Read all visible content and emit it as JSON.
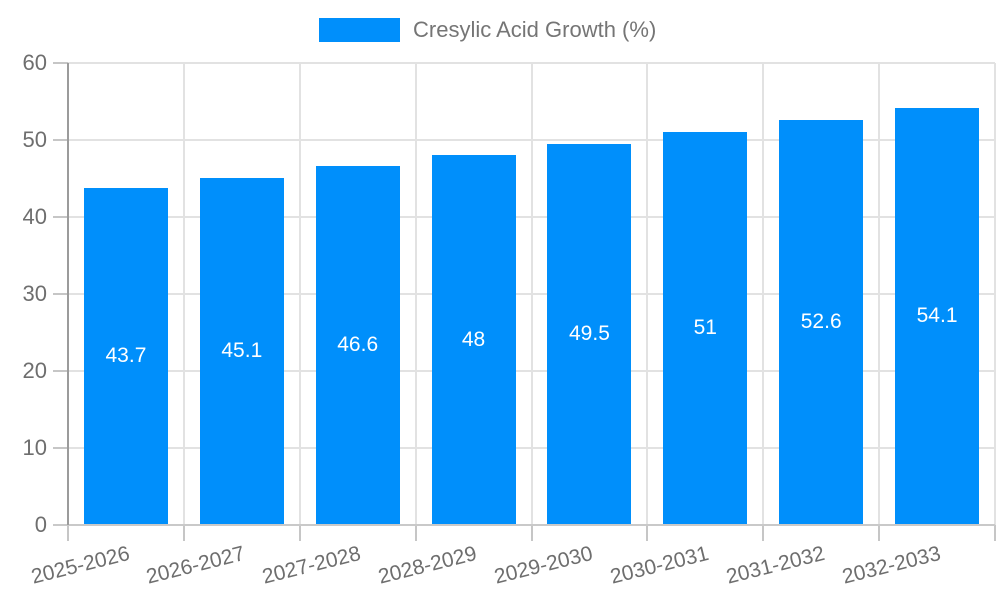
{
  "chart_data": {
    "type": "bar",
    "title": "",
    "legend": {
      "position": "top",
      "label": "Cresylic Acid Growth (%)"
    },
    "categories": [
      "2025-2026",
      "2026-2027",
      "2027-2028",
      "2028-2029",
      "2029-2030",
      "2030-2031",
      "2031-2032",
      "2032-2033"
    ],
    "series": [
      {
        "name": "Cresylic Acid Growth (%)",
        "values": [
          43.7,
          45.1,
          46.6,
          48,
          49.5,
          51,
          52.6,
          54.1
        ],
        "bar_labels": [
          "43.7",
          "45.1",
          "46.6",
          "48",
          "49.5",
          "51",
          "52.6",
          "54.1"
        ]
      }
    ],
    "xlabel": "",
    "ylabel": "",
    "ylim": [
      0,
      60
    ],
    "yticks": [
      0,
      10,
      20,
      30,
      40,
      50,
      60
    ],
    "grid": true,
    "colors": {
      "bar": "#008FFB",
      "bar_label_text": "#ffffff",
      "gridline": "#e2e2e2",
      "tick": "#c6c6c6",
      "y_axis_line": "#9b9b9b",
      "x_axis_line": "#c9c9c9",
      "axis_text": "#6e6e6e",
      "legend_text": "#757575",
      "background": "#ffffff"
    }
  }
}
